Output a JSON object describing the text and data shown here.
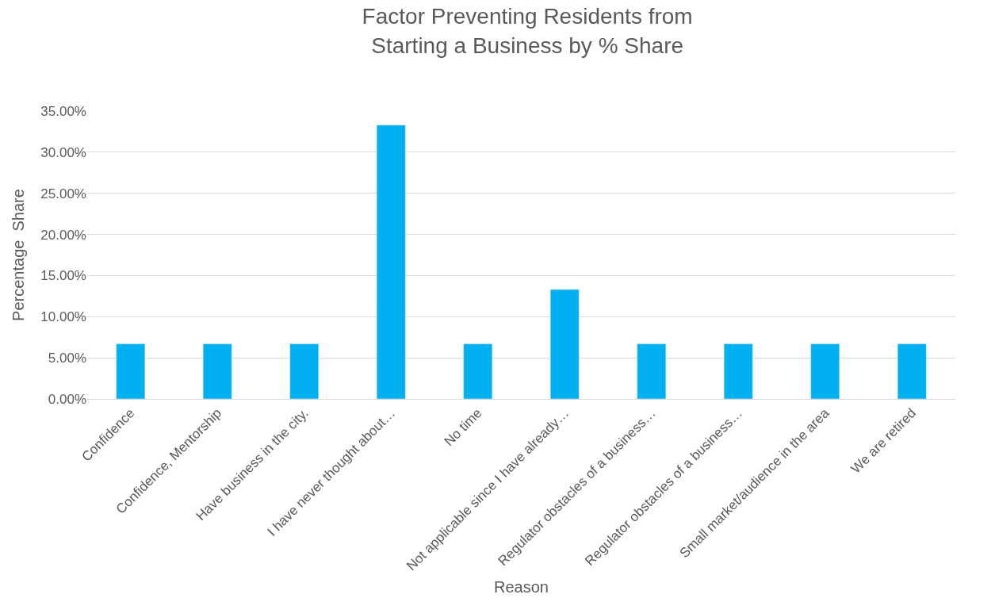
{
  "chart_data": {
    "type": "bar",
    "title": "Factor Preventing Residents from\nStarting a Business by % Share",
    "xlabel": "Reason",
    "ylabel": "Percentage  Share",
    "categories": [
      "Confidence",
      "Confidence, Mentorship",
      "Have business in the city.",
      "I have never thought about…",
      "No time",
      "Not applicable since I have already…",
      "Regulator obstacles of a business…",
      "Regulator obstacles of a business…",
      "Small market/audience in the area",
      "We are retired"
    ],
    "values": [
      6.7,
      6.7,
      6.7,
      33.3,
      6.7,
      13.3,
      6.7,
      6.7,
      6.7,
      6.7
    ],
    "color": "#00b0f0",
    "ylim": [
      0,
      35
    ],
    "yticks": [
      {
        "value": 0,
        "label": "0.00%"
      },
      {
        "value": 5,
        "label": "5.00%"
      },
      {
        "value": 10,
        "label": "10.00%"
      },
      {
        "value": 15,
        "label": "15.00%"
      },
      {
        "value": 20,
        "label": "20.00%"
      },
      {
        "value": 25,
        "label": "25.00%"
      },
      {
        "value": 30,
        "label": "30.00%"
      },
      {
        "value": 35,
        "label": "35.00%"
      }
    ],
    "grid": "y"
  }
}
